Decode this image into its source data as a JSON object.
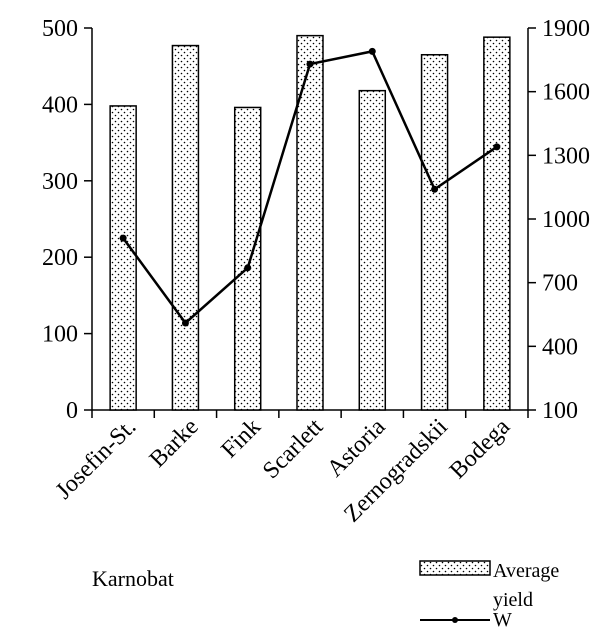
{
  "chart_data": {
    "type": "bar",
    "categories": [
      "Josefin-St.",
      "Barke",
      "Fink",
      "Scarlett",
      "Astoria",
      "Zernogradskii",
      "Bodega"
    ],
    "series": [
      {
        "name": "Average yield",
        "type": "bar",
        "axis": "left",
        "values": [
          398,
          477,
          396,
          490,
          418,
          465,
          488
        ]
      },
      {
        "name": "W",
        "type": "line",
        "axis": "right",
        "values": [
          910,
          510,
          770,
          1730,
          1790,
          1140,
          1340
        ]
      }
    ],
    "y_left": {
      "min": 0,
      "max": 500,
      "ticks": [
        0,
        100,
        200,
        300,
        400,
        500
      ]
    },
    "y_right": {
      "min": 100,
      "max": 1900,
      "ticks": [
        100,
        400,
        700,
        1000,
        1300,
        1600,
        1900
      ]
    },
    "annotation": "Karnobat",
    "legend": {
      "placement": "bottom-right",
      "entries": [
        "Average yield",
        "W"
      ]
    },
    "grid": false,
    "colors": {
      "bar_fill_pattern": "dotted",
      "line": "#000000"
    }
  }
}
